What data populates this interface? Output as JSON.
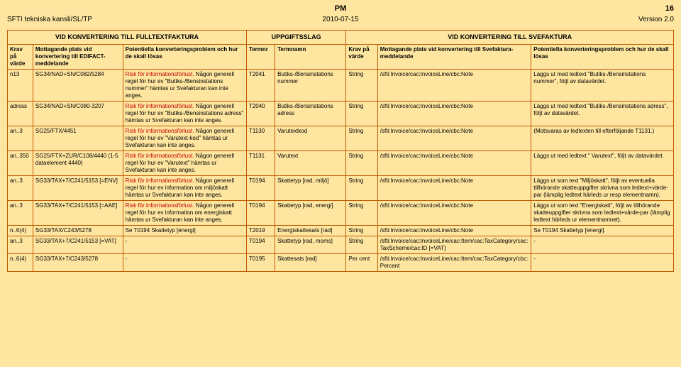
{
  "header": {
    "doc_label": "PM",
    "page_no": "16",
    "org": "SFTI tekniska kansli/SL/TP",
    "date": "2010-07-15",
    "version": "Version 2.0"
  },
  "section_titles": {
    "left": "VID KONVERTERING TILL FULLTEXTFAKTURA",
    "mid": "UPPGIFTSSLAG",
    "right": "VID KONVERTERING TILL SVEFAKTURA"
  },
  "columns": {
    "c1": "Krav på värde",
    "c2": "Mottagande plats vid konvertering till EDIFACT-meddelande",
    "c3": "Potentiella konverteringsproblem och hur de skall lösas",
    "c4": "Termnr",
    "c5": "Termnamn",
    "c6": "Krav på värde",
    "c7": "Mottagande plats vid konvertering till Svefaktura-meddelande",
    "c8": "Potentiella konverteringsproblem och hur de skall lösas"
  },
  "risk_prefix": "Risk för informationsförlust.",
  "rows": [
    {
      "c1": "n13",
      "c2": "SG34/NAD+SN/C082/5284",
      "c3_rest": " Någon generell regel för hur ev \"Butiks-/Bensinstations nummer\" hämtas ur Svefakturan kan inte anges.",
      "c3_warn": true,
      "c4": "T2041",
      "c5": "Butiks-/Bensinstations nummer",
      "c6": "String",
      "c7": "/sfti:Invoice/cac:InvoiceLine/cbc:Note",
      "c8": "Läggs ut med ledtext \"Butiks-/Bensinstations nummer\", följt av datavärdet."
    },
    {
      "c1": "adress",
      "c2": "SG34/NAD+SN/C080-3207",
      "c3_rest": " Någon generell regel för hur ev \"Butiks-/Bensinstations adress\" hämtas ur Svefakturan kan inte anges.",
      "c3_warn": true,
      "c4": "T2040",
      "c5": "Butiks-/Bensinstations adress",
      "c6": "String",
      "c7": "/sfti:Invoice/cac:InvoiceLine/cbc:Note",
      "c8": "Läggs ut med ledtext \"Butiks-/Bensinstations adress\", följt av datavärdet."
    },
    {
      "c1": "an..3",
      "c2": "SG25/FTX/4451",
      "c3_rest": " Någon generell regel för hur ev \"Varutext-kod\" hämtas ur Svefakturan kan inte anges.",
      "c3_warn": true,
      "c4": "T1130",
      "c5": "Varutextkod",
      "c6": "String",
      "c7": "/sfti:Invoice/cac:InvoiceLine/cbc:Note",
      "c8": "(Motsvaras av ledtexten till efterföljande T1131.)"
    },
    {
      "c1": "an..350",
      "c2": "SG25/FTX+ZUR/C108/4440 (1-5 dataelement 4440)",
      "c3_rest": " Någon generell regel för hur ev \"Varutext\" hämtas ur Svefakturan kan inte anges.",
      "c3_warn": true,
      "c4": "T1131",
      "c5": "Varutext",
      "c6": "String",
      "c7": "/sfti:Invoice/cac:InvoiceLine/cbc:Note",
      "c8": "Läggs ut med ledtext \" Varutext\", följt av datavärdet."
    },
    {
      "c1": "an..3",
      "c2": "SG33/TAX+7/C241/5153 [=ENV]",
      "c3_rest": " Någon generell regel för hur ev information om miljöskatt hämtas ur Svefakturan kan inte anges.",
      "c3_warn": true,
      "c4": "T0194",
      "c5": "Skattetyp [rad, miljö]",
      "c6": "String",
      "c7": "/sfti:Invoice/cac:InvoiceLine/cbc:Note",
      "c8": "Läggs ut som text \"Miljöskatt\", följt av eventuella tillhörande skatteuppgifter skrivna som ledtext+värde-par (lämplig ledtext härleds ur resp elementnamn)."
    },
    {
      "c1": "an..3",
      "c2": "SG33/TAX+7/C241/5153 [=AAE]",
      "c3_rest": " Någon generell regel för hur ev information om energiskatt hämtas ur Svefakturan kan inte anges.",
      "c3_warn": true,
      "c4": "T0194",
      "c5": "Skattetyp [rad, energi]",
      "c6": "String",
      "c7": "/sfti:Invoice/cac:InvoiceLine/cbc:Note",
      "c8": "Läggs ut som text \"Energiskatt\", följt av tillhörande skatteuppgifter skrivna som ledtext+värde-par (lämplig ledtext härleds ur elementnamnet)."
    },
    {
      "c1": "n..6(4)",
      "c2": "SG33/TAX/C243/5278",
      "c3_plain": "Se T0194 Skattetyp [energi]",
      "c4": "T2019",
      "c5": "Energiskattesats [rad]",
      "c6": "String",
      "c7": "/sfti:Invoice/cac:InvoiceLine/cbc:Note",
      "c8": "Se T0194 Skattetyp [energi]."
    },
    {
      "c1": "an..3",
      "c2": "SG33/TAX+7/C241/5153 [=VAT]",
      "c3_plain": "-",
      "c4": "T0194",
      "c5": "Skattetyp [rad, moms]",
      "c6": "String",
      "c7": "/sfti:Invoice/cac:InvoiceLine/cac:Item/cac:TaxCategory/cac:TaxScheme/cac:ID [=VAT]",
      "c8": "-"
    },
    {
      "c1": "n..6(4)",
      "c2": "SG33/TAX+7/C243/5278",
      "c3_plain": "-",
      "c4": "T0195",
      "c5": "Skattesats [rad]",
      "c6": "Per cent",
      "c7": "/sfti:Invoice/cac:InvoiceLine/cac:Item/cac:TaxCategory/cbc:Percent",
      "c8": "-"
    }
  ]
}
